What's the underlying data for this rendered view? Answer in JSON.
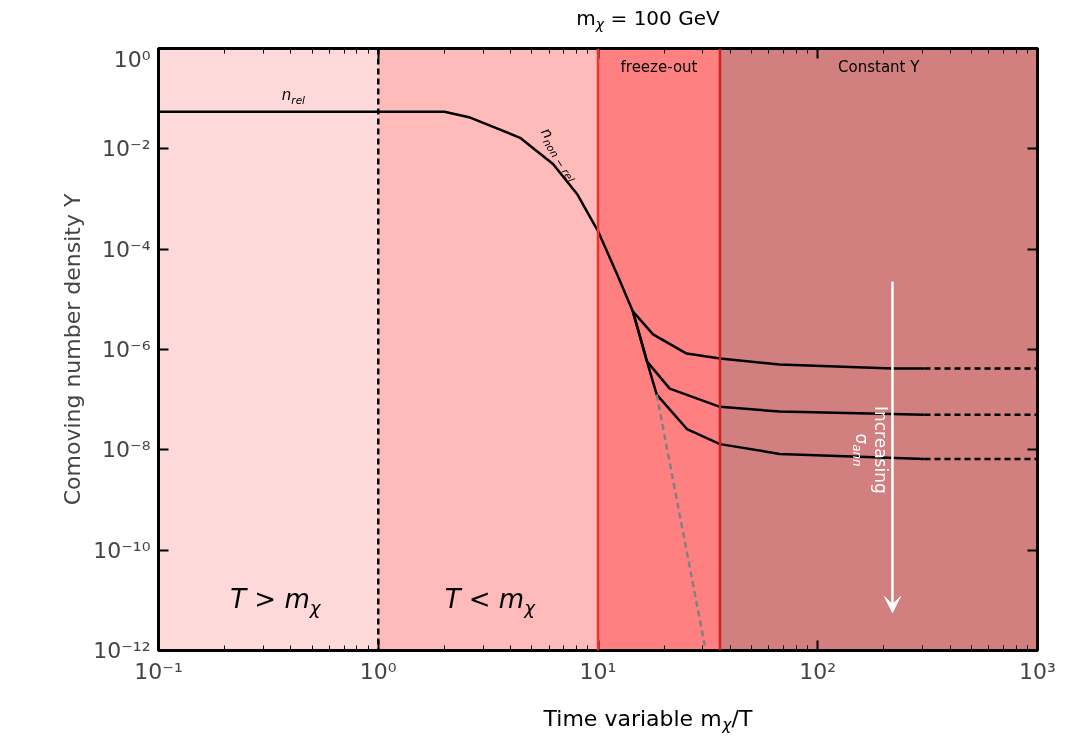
{
  "chart_data": {
    "type": "line",
    "title": "m$_{χ}$ = 100 GeV",
    "xlabel": "Time variable m$_{χ}$/T",
    "ylabel": "Comoving number density Y",
    "log": "xy",
    "xlim": [
      0.1,
      1000
    ],
    "ylim": [
      1e-12,
      1
    ],
    "xticks": [
      {
        "value": 0.1,
        "label": "10⁻¹"
      },
      {
        "value": 1,
        "label": "10⁰"
      },
      {
        "value": 10,
        "label": "10¹"
      },
      {
        "value": 100,
        "label": "10²"
      },
      {
        "value": 1000,
        "label": "10³"
      }
    ],
    "yticks": [
      {
        "value": 1e-12,
        "label": "10⁻¹²"
      },
      {
        "value": 1e-10,
        "label": "10⁻¹⁰"
      },
      {
        "value": 1e-08,
        "label": "10⁻⁸"
      },
      {
        "value": 1e-06,
        "label": "10⁻⁶"
      },
      {
        "value": 0.0001,
        "label": "10⁻⁴"
      },
      {
        "value": 0.01,
        "label": "10⁻²"
      },
      {
        "value": 1,
        "label": "10⁰"
      }
    ],
    "series": [
      {
        "color": "#000000",
        "line_style": "solid",
        "x": [
          0.1,
          2,
          2.62,
          4.42,
          6.24,
          8.03,
          10,
          12.2,
          14.4,
          17.8,
          25.3,
          35.9,
          67,
          219,
          306
        ],
        "values": [
          0.055,
          0.055,
          0.042,
          0.0166,
          0.005,
          0.00126,
          0.00023,
          3.2e-05,
          5.8e-06,
          2e-06,
          8.3e-07,
          6.6e-07,
          5e-07,
          4.2e-07,
          4.2e-07
        ]
      },
      {
        "color": "#000000",
        "line_style": "dashed",
        "x": [
          306,
          1000
        ],
        "values": [
          4.2e-07,
          4.2e-07
        ]
      },
      {
        "color": "#000000",
        "line_style": "solid",
        "x": [
          14.4,
          16.7,
          21.2,
          35.9,
          67,
          306
        ],
        "values": [
          5.8e-06,
          5.8e-07,
          1.66e-07,
          7.2e-08,
          5.8e-08,
          5e-08
        ]
      },
      {
        "color": "#000000",
        "line_style": "dashed",
        "x": [
          306,
          1000
        ],
        "values": [
          5e-08,
          5e-08
        ]
      },
      {
        "color": "#000000",
        "line_style": "solid",
        "x": [
          14.4,
          16.7,
          18.5,
          25.4,
          35.9,
          67,
          306
        ],
        "values": [
          5.8e-06,
          5.8e-07,
          1.26e-07,
          2.6e-08,
          1.3e-08,
          8.3e-09,
          6.6e-09
        ]
      },
      {
        "color": "#000000",
        "line_style": "dashed",
        "x": [
          306,
          1000
        ],
        "values": [
          6.6e-09,
          6.6e-09
        ]
      },
      {
        "color": "#808080",
        "line_style": "dashed",
        "x": [
          18.5,
          30.6
        ],
        "values": [
          1.26e-07,
          1.26e-12
        ]
      }
    ],
    "bands": [
      {
        "axis": "x",
        "from": 0.1,
        "to": 1,
        "color": "#fdd9d9"
      },
      {
        "axis": "x",
        "from": 1,
        "to": 10,
        "color": "#ffbaba"
      },
      {
        "axis": "x",
        "from": 10,
        "to": 35.9,
        "color": "#ff8080",
        "label": "freeze-out"
      },
      {
        "axis": "x",
        "from": 35.9,
        "to": 1000,
        "color": "#d17f7f",
        "label": "Constant Y"
      }
    ],
    "ref_lines": [
      {
        "axis": "x",
        "value": 1,
        "color": "#000000",
        "line_style": "dashed"
      },
      {
        "axis": "x",
        "value": 10,
        "color": "#ee3333",
        "line_style": "solid"
      },
      {
        "axis": "x",
        "value": 35.9,
        "color": "#cc2222",
        "line_style": "solid"
      }
    ],
    "annotations": [
      "n$_{rel}$",
      "n$_{non − rel}$",
      "T > m$_{χ}$",
      "T < m$_{χ}$",
      "Increasing\nσ$_{ann}$"
    ]
  }
}
